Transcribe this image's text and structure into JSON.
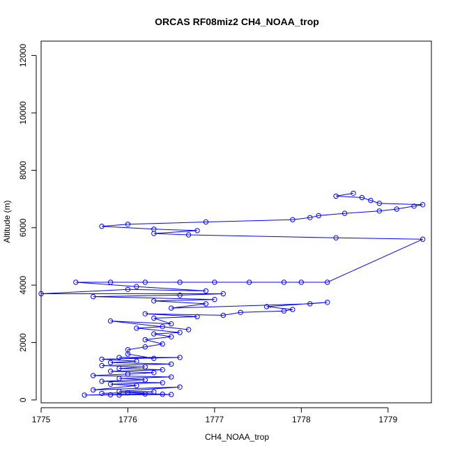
{
  "chart_data": {
    "type": "scatter",
    "title": "ORCAS RF08miz2 CH4_NOAA_trop",
    "xlabel": "CH4_NOAA_trop",
    "ylabel": "Altitude (m)",
    "xlim": [
      1775,
      1779.5
    ],
    "ylim": [
      -100,
      12500
    ],
    "x_ticks": [
      1775,
      1776,
      1777,
      1778,
      1779
    ],
    "x_tick_labels": [
      "1775",
      "1776",
      "1777",
      "1778",
      "1779"
    ],
    "y_ticks": [
      0,
      2000,
      4000,
      6000,
      8000,
      10000,
      12000
    ],
    "y_tick_labels": [
      "0",
      "2000",
      "4000",
      "6000",
      "8000",
      "10000",
      "12000"
    ],
    "grid": false,
    "marker": "open-circle",
    "connected": true,
    "color": "#0000ff",
    "series": [
      {
        "points": [
          [
            1775.9,
            170
          ],
          [
            1776.4,
            200
          ],
          [
            1775.5,
            170
          ],
          [
            1776.2,
            210
          ],
          [
            1775.8,
            180
          ],
          [
            1776.5,
            190
          ],
          [
            1776.0,
            250
          ],
          [
            1775.7,
            230
          ],
          [
            1776.3,
            280
          ],
          [
            1775.9,
            300
          ],
          [
            1776.6,
            450
          ],
          [
            1775.6,
            350
          ],
          [
            1776.1,
            500
          ],
          [
            1775.8,
            550
          ],
          [
            1776.4,
            600
          ],
          [
            1775.7,
            650
          ],
          [
            1776.2,
            700
          ],
          [
            1775.9,
            750
          ],
          [
            1776.5,
            800
          ],
          [
            1775.6,
            850
          ],
          [
            1776.0,
            900
          ],
          [
            1776.3,
            950
          ],
          [
            1775.8,
            1000
          ],
          [
            1776.4,
            1050
          ],
          [
            1775.9,
            1100
          ],
          [
            1776.2,
            1150
          ],
          [
            1775.7,
            1200
          ],
          [
            1776.5,
            1250
          ],
          [
            1775.8,
            1300
          ],
          [
            1776.1,
            1350
          ],
          [
            1775.7,
            1420
          ],
          [
            1776.6,
            1480
          ],
          [
            1775.9,
            1480
          ],
          [
            1776.3,
            1450
          ],
          [
            1776.0,
            1600
          ],
          [
            1776.0,
            1750
          ],
          [
            1776.2,
            1850
          ],
          [
            1776.4,
            1950
          ],
          [
            1776.2,
            2100
          ],
          [
            1776.5,
            2200
          ],
          [
            1776.3,
            2300
          ],
          [
            1776.6,
            2350
          ],
          [
            1776.1,
            2500
          ],
          [
            1776.4,
            2550
          ],
          [
            1776.7,
            2450
          ],
          [
            1775.8,
            2750
          ],
          [
            1776.5,
            2650
          ],
          [
            1776.3,
            2850
          ],
          [
            1776.8,
            2900
          ],
          [
            1776.2,
            3000
          ],
          [
            1777.1,
            2950
          ],
          [
            1777.3,
            3050
          ],
          [
            1777.8,
            3100
          ],
          [
            1777.9,
            3150
          ],
          [
            1777.6,
            3250
          ],
          [
            1778.3,
            3400
          ],
          [
            1778.1,
            3350
          ],
          [
            1776.5,
            3200
          ],
          [
            1776.9,
            3350
          ],
          [
            1776.3,
            3450
          ],
          [
            1777.0,
            3500
          ],
          [
            1775.6,
            3600
          ],
          [
            1776.6,
            3650
          ],
          [
            1777.1,
            3700
          ],
          [
            1775.0,
            3700
          ],
          [
            1776.0,
            3850
          ],
          [
            1776.9,
            3800
          ],
          [
            1776.1,
            3950
          ],
          [
            1775.4,
            4100
          ],
          [
            1775.8,
            4100
          ],
          [
            1776.2,
            4100
          ],
          [
            1776.6,
            4100
          ],
          [
            1777.0,
            4100
          ],
          [
            1777.4,
            4100
          ],
          [
            1777.8,
            4100
          ],
          [
            1778.0,
            4100
          ],
          [
            1778.3,
            4100
          ],
          [
            1779.4,
            5600
          ],
          [
            1778.4,
            5650
          ],
          [
            1776.7,
            5750
          ],
          [
            1776.3,
            5800
          ],
          [
            1776.8,
            5900
          ],
          [
            1776.3,
            5950
          ],
          [
            1775.7,
            6050
          ],
          [
            1776.0,
            6120
          ],
          [
            1776.9,
            6200
          ],
          [
            1777.9,
            6280
          ],
          [
            1778.1,
            6350
          ],
          [
            1778.2,
            6420
          ],
          [
            1778.5,
            6500
          ],
          [
            1778.9,
            6580
          ],
          [
            1779.1,
            6650
          ],
          [
            1779.3,
            6750
          ],
          [
            1779.4,
            6800
          ],
          [
            1778.9,
            6850
          ],
          [
            1778.8,
            6950
          ],
          [
            1778.7,
            7050
          ],
          [
            1778.4,
            7100
          ],
          [
            1778.6,
            7200
          ]
        ]
      }
    ]
  }
}
